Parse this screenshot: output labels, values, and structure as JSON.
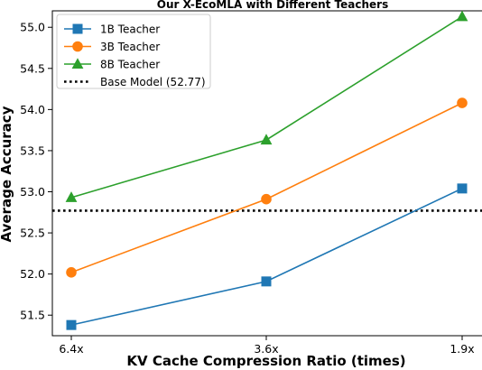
{
  "chart_data": {
    "type": "line",
    "title": "Our X-EcoMLA with Different Teachers",
    "xlabel": "KV Cache Compression Ratio (times)",
    "ylabel": "Average Accuracy",
    "categories": [
      "6.4x",
      "3.6x",
      "1.9x"
    ],
    "ylim": [
      51.25,
      55.2
    ],
    "yticks": [
      "51.5",
      "52.0",
      "52.5",
      "53.0",
      "53.5",
      "54.0",
      "54.5",
      "55.0"
    ],
    "series": [
      {
        "name": "1B Teacher",
        "values": [
          51.38,
          51.91,
          53.04
        ],
        "color": "#1f77b4",
        "marker": "square"
      },
      {
        "name": "3B Teacher",
        "values": [
          52.02,
          52.91,
          54.08
        ],
        "color": "#ff7f0e",
        "marker": "circle"
      },
      {
        "name": "8B Teacher",
        "values": [
          52.93,
          53.63,
          55.13
        ],
        "color": "#2ca02c",
        "marker": "triangle"
      }
    ],
    "reference_line": {
      "name": "Base Model (52.77)",
      "value": 52.77,
      "color": "#000000",
      "style": "dotted"
    },
    "legend_position": "top-left",
    "grid": false
  }
}
